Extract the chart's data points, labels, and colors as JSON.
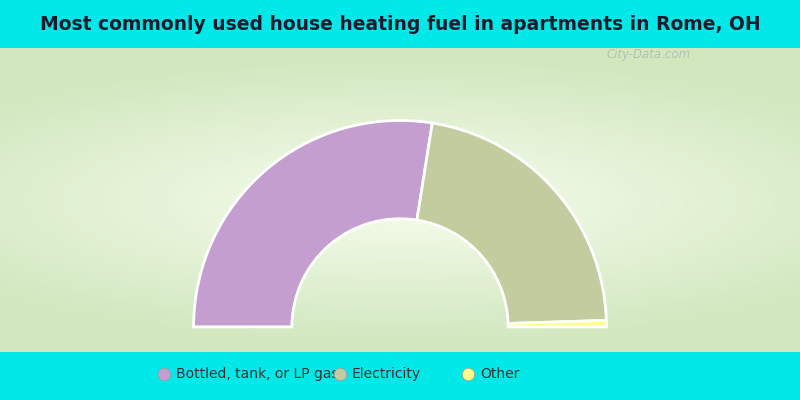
{
  "title": "Most commonly used house heating fuel in apartments in Rome, OH",
  "categories": [
    "Bottled, tank, or LP gas",
    "Electricity",
    "Other"
  ],
  "values": [
    55,
    44,
    1
  ],
  "colors": [
    "#c39ece",
    "#c2cc9e",
    "#ffff88"
  ],
  "background_cyan": "#00e8e8",
  "title_fontsize": 13.5,
  "legend_fontsize": 10,
  "outer_r": 1.05,
  "inner_r": 0.55,
  "watermark": "City-Data.com"
}
